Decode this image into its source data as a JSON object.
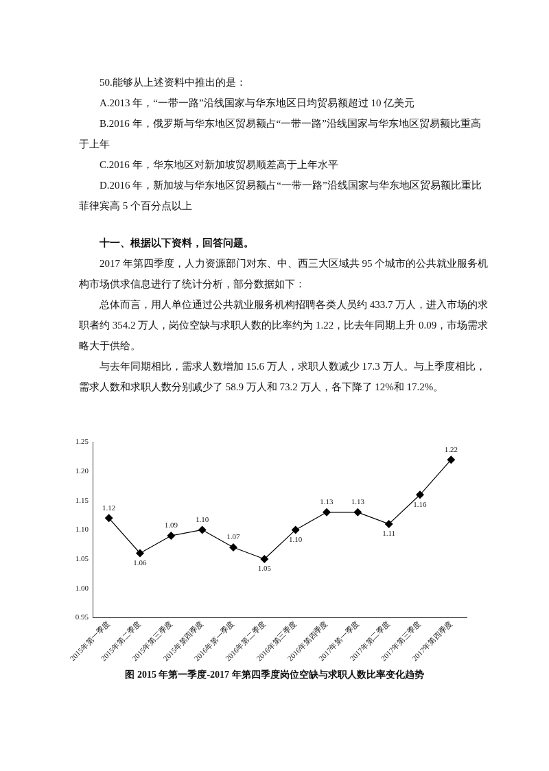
{
  "chart_data": {
    "type": "line",
    "title": "图 2015 年第一季度-2017 年第四季度岗位空缺与求职人数比率变化趋势",
    "annotations": [
      "50.能够从上述资料中推出的是：",
      "A.2013 年，“一带一路”沿线国家与华东地区日均贸易额超过 10 亿美元",
      "B.2016 年，俄罗斯与华东地区贸易额占“一带一路”沿线国家与华东地区贸易额比重高于上年",
      "C.2016 年，华东地区对新加坡贸易顺差高于上年水平",
      "D.2016 年，新加坡与华东地区贸易额占“一带一路”沿线国家与华东地区贸易额比重比菲律宾高 5 个百分点以上",
      "十一、根据以下资料，回答问题。",
      "2017 年第四季度，人力资源部门对东、中、西三大区域共 95 个城市的公共就业服务机构市场供求信息进行了统计分析，部分数据如下：",
      "总体而言，用人单位通过公共就业服务机构招聘各类人员约 433.7 万人，进入市场的求职者约 354.2 万人，岗位空缺与求职人数的比率约为 1.22，比去年同期上升 0.09，市场需求略大于供给。",
      "与去年同期相比，需求人数增加 15.6 万人，求职人数减少 17.3 万人。与上季度相比，需求人数和求职人数分别减少了 58.9 万人和 73.2 万人，各下降了 12%和 17.2%。"
    ],
    "categories": [
      "2015年第一季度",
      "2015年第二季度",
      "2015年第三季度",
      "2015年第四季度",
      "2016年第一季度",
      "2016年第二季度",
      "2016年第三季度",
      "2016年第四季度",
      "2017年第一季度",
      "2017年第二季度",
      "2017年第三季度",
      "2017年第四季度"
    ],
    "series": [
      {
        "color": "#000000",
        "values": [
          1.12,
          1.06,
          1.09,
          1.1,
          1.07,
          1.05,
          1.1,
          1.13,
          1.13,
          1.11,
          1.16,
          1.22
        ],
        "value_labels": [
          "1.12",
          "1.06",
          "1.09",
          "1.10",
          "1.07",
          "1.05",
          "1.10",
          "1.13",
          "1.13",
          "1.11",
          "1.16",
          "1.22"
        ]
      }
    ],
    "ylim": [
      0.95,
      1.25
    ],
    "yticks": [
      0.95,
      {
        "value": 1,
        "label": "1.00"
      },
      1.05,
      {
        "value": 1.1,
        "label": "1.10"
      },
      1.15,
      {
        "value": 1.2,
        "label": "1.20"
      },
      1.25
    ],
    "marker": "diamond",
    "line_style": "solid",
    "grid": false,
    "legend": false
  }
}
